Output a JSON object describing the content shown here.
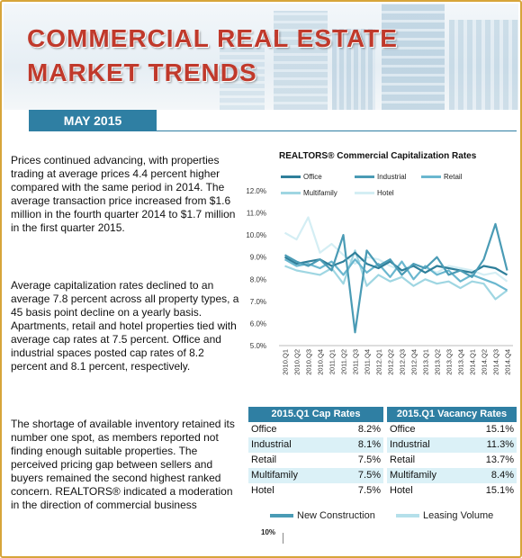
{
  "header": {
    "title_line1": "COMMERCIAL REAL ESTATE",
    "title_line2": "MARKET TRENDS",
    "date": "MAY 2015"
  },
  "paragraphs": [
    "Prices continued advancing, with properties trading at average prices 4.4 percent higher compared with the same period in 2014.  The average transaction price increased from $1.6 million in the fourth quarter 2014 to $1.7 million in the first quarter 2015.",
    "Average capitalization rates declined to an average 7.8 percent across all property types, a 45 basis point decline on a yearly basis. Apartments, retail and hotel properties tied with average cap rates at 7.5 percent.  Office and industrial spaces posted cap rates of 8.2 percent and 8.1 percent, respectively.",
    "The shortage of available inventory retained its number one spot, as members reported not finding enough suitable properties.  The perceived pricing gap between sellers and buyers remained the second highest ranked concern. REALTORS® indicated a moderation in the direction of commercial business"
  ],
  "chart_data": {
    "type": "line",
    "title": "REALTORS® Commercial Capitalization Rates",
    "categories": [
      "2010.Q1",
      "2010.Q2",
      "2010.Q3",
      "2010.Q4",
      "2011.Q1",
      "2011.Q2",
      "2011.Q3",
      "2011.Q4",
      "2012.Q1",
      "2012.Q2",
      "2012.Q3",
      "2012.Q4",
      "2013.Q1",
      "2013.Q2",
      "2013.Q3",
      "2013.Q4",
      "2014.Q1",
      "2014.Q2",
      "2014.Q3",
      "2014.Q4"
    ],
    "y_tick_labels": [
      "12.0%",
      "11.0%",
      "10.0%",
      "9.0%",
      "8.0%",
      "7.0%",
      "6.0%",
      "5.0%"
    ],
    "ylim": [
      5,
      12
    ],
    "series": [
      {
        "name": "Office",
        "color": "#2f7f9a",
        "values": [
          9.0,
          8.7,
          8.8,
          8.9,
          8.6,
          8.8,
          9.2,
          8.7,
          8.5,
          8.8,
          8.4,
          8.6,
          8.3,
          8.6,
          8.5,
          8.4,
          8.3,
          8.6,
          8.5,
          8.2
        ]
      },
      {
        "name": "Industrial",
        "color": "#4a9bb5",
        "values": [
          9.1,
          8.8,
          8.6,
          8.9,
          8.4,
          10.0,
          5.6,
          9.3,
          8.6,
          8.9,
          8.2,
          8.7,
          8.5,
          9.0,
          8.2,
          8.4,
          8.1,
          8.9,
          10.5,
          8.4
        ]
      },
      {
        "name": "Retail",
        "color": "#6ab7cf",
        "values": [
          8.9,
          8.6,
          8.7,
          8.5,
          8.8,
          8.2,
          8.9,
          8.3,
          8.7,
          8.1,
          8.8,
          8.0,
          8.6,
          8.2,
          8.4,
          7.9,
          8.2,
          8.0,
          7.8,
          7.5
        ]
      },
      {
        "name": "Multifamily",
        "color": "#9fd6e2",
        "values": [
          8.6,
          8.4,
          8.3,
          8.2,
          8.5,
          7.8,
          9.3,
          7.7,
          8.2,
          7.9,
          8.1,
          7.7,
          8.0,
          7.8,
          7.9,
          7.6,
          7.9,
          7.8,
          7.1,
          7.5
        ]
      },
      {
        "name": "Hotel",
        "color": "#d4eef4",
        "values": [
          10.1,
          9.8,
          10.8,
          9.2,
          9.6,
          9.1,
          8.7,
          9.0,
          8.9,
          8.6,
          8.4,
          8.7,
          8.5,
          8.3,
          8.6,
          8.5,
          8.4,
          8.2,
          8.3,
          7.9
        ]
      }
    ]
  },
  "cap_rates": {
    "title": "2015.Q1 Cap Rates",
    "rows": [
      {
        "label": "Office",
        "value": "8.2%"
      },
      {
        "label": "Industrial",
        "value": "8.1%"
      },
      {
        "label": "Retail",
        "value": "7.5%"
      },
      {
        "label": "Multifamily",
        "value": "7.5%"
      },
      {
        "label": "Hotel",
        "value": "7.5%"
      }
    ]
  },
  "vacancy_rates": {
    "title": "2015.Q1 Vacancy Rates",
    "rows": [
      {
        "label": "Office",
        "value": "15.1%"
      },
      {
        "label": "Industrial",
        "value": "11.3%"
      },
      {
        "label": "Retail",
        "value": "13.7%"
      },
      {
        "label": "Multifamily",
        "value": "8.4%"
      },
      {
        "label": "Hotel",
        "value": "15.1%"
      }
    ]
  },
  "bottom_chart": {
    "legend": [
      {
        "name": "New Construction",
        "color": "#4a9bb5"
      },
      {
        "name": "Leasing Volume",
        "color": "#b5e0ea"
      }
    ],
    "first_tick": "10%"
  },
  "colors": {
    "accent": "#2f7fa3",
    "title": "#c0392b",
    "frame": "#d7a53a"
  }
}
